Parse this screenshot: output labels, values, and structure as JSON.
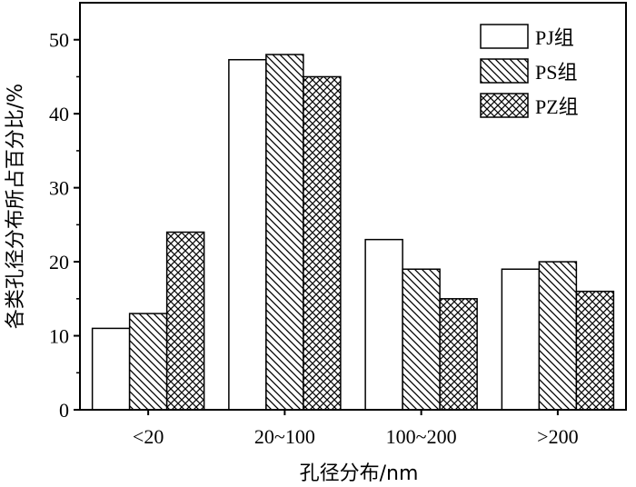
{
  "chart_data": {
    "type": "bar",
    "xlabel": "孔径分布/nm",
    "ylabel": "各类孔径分布所占百分比/%",
    "categories": [
      "<20",
      "20~100",
      "100~200",
      ">200"
    ],
    "ylim": [
      0,
      55
    ],
    "yticks": [
      0,
      10,
      20,
      30,
      40,
      50
    ],
    "grid": false,
    "legend_position": "top-right",
    "series": [
      {
        "name": "PJ组",
        "pattern": "plain",
        "values": [
          11,
          47.3,
          23,
          19
        ]
      },
      {
        "name": "PS组",
        "pattern": "diagonal",
        "values": [
          13,
          48,
          19,
          20
        ]
      },
      {
        "name": "PZ组",
        "pattern": "crosshatch",
        "values": [
          24,
          45,
          15,
          16
        ]
      }
    ]
  }
}
